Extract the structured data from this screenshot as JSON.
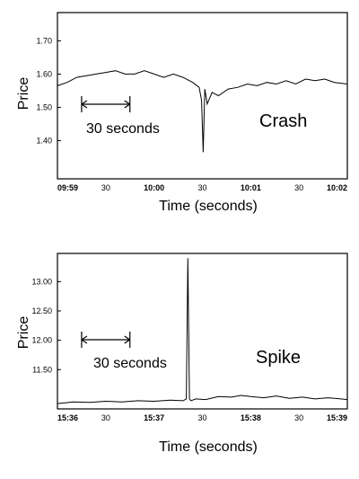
{
  "chart_data": [
    {
      "type": "line",
      "ylabel": "Price",
      "xlabel": "Time (seconds)",
      "annotation": "Crash",
      "scale_label": "30 seconds",
      "xticks": [
        "09:59",
        "30",
        "10:00",
        "30",
        "10:01",
        "30",
        "10:02"
      ],
      "xticks_bold": [
        true,
        false,
        true,
        false,
        true,
        false,
        true
      ],
      "yticks": [
        "1.70",
        "1.60",
        "1.50",
        "1.40"
      ],
      "ytick_values": [
        1.7,
        1.6,
        1.5,
        1.4
      ],
      "ylim": [
        1.285,
        1.785
      ],
      "xlim": [
        0,
        180
      ],
      "scale_bar_seconds": [
        15,
        45
      ],
      "series": [
        {
          "x": [
            0,
            6,
            12,
            18,
            24,
            30,
            36,
            42,
            48,
            54,
            60,
            66,
            72,
            78,
            84,
            88,
            89.5,
            90.5,
            91.5,
            93,
            96,
            100,
            106,
            112,
            118,
            124,
            130,
            136,
            142,
            148,
            154,
            160,
            166,
            172,
            180
          ],
          "values": [
            1.565,
            1.575,
            1.59,
            1.595,
            1.6,
            1.605,
            1.61,
            1.6,
            1.6,
            1.61,
            1.6,
            1.59,
            1.6,
            1.59,
            1.575,
            1.56,
            1.52,
            1.365,
            1.555,
            1.51,
            1.545,
            1.535,
            1.555,
            1.56,
            1.57,
            1.565,
            1.575,
            1.57,
            1.58,
            1.57,
            1.585,
            1.58,
            1.585,
            1.575,
            1.57
          ]
        }
      ]
    },
    {
      "type": "line",
      "ylabel": "Price",
      "xlabel": "Time (seconds)",
      "annotation": "Spike",
      "scale_label": "30 seconds",
      "xticks": [
        "15:36",
        "30",
        "15:37",
        "30",
        "15:38",
        "30",
        "15:39"
      ],
      "xticks_bold": [
        true,
        false,
        true,
        false,
        true,
        false,
        true
      ],
      "yticks": [
        "13.00",
        "12.50",
        "12.00",
        "11.50"
      ],
      "ytick_values": [
        13.0,
        12.5,
        12.0,
        11.5
      ],
      "ylim": [
        10.83,
        13.48
      ],
      "xlim": [
        0,
        180
      ],
      "scale_bar_seconds": [
        15,
        45
      ],
      "series": [
        {
          "x": [
            0,
            10,
            20,
            30,
            40,
            50,
            60,
            70,
            78,
            80,
            81,
            82,
            83,
            84,
            86,
            92,
            100,
            108,
            114,
            120,
            128,
            136,
            144,
            152,
            160,
            168,
            176,
            180
          ],
          "values": [
            10.92,
            10.95,
            10.94,
            10.96,
            10.95,
            10.97,
            10.96,
            10.98,
            10.97,
            11.0,
            13.4,
            11.0,
            10.97,
            10.98,
            11.0,
            10.99,
            11.04,
            11.03,
            11.06,
            11.04,
            11.02,
            11.05,
            11.01,
            11.03,
            11.0,
            11.02,
            11.0,
            10.99
          ]
        }
      ]
    }
  ]
}
